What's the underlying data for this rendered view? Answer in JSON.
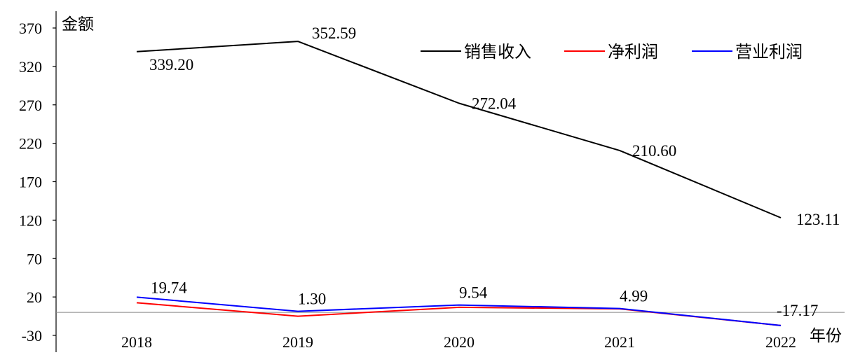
{
  "chart_data": {
    "type": "line",
    "xlabel": "年份",
    "ylabel": "金额",
    "categories": [
      "2018",
      "2019",
      "2020",
      "2021",
      "2022"
    ],
    "ylim": [
      -30,
      370
    ],
    "yticks": [
      -30,
      20,
      70,
      120,
      170,
      220,
      270,
      320,
      370
    ],
    "legend_position": "top-right",
    "series": [
      {
        "name": "销售收入",
        "color": "#000000",
        "values": [
          339.2,
          352.59,
          272.04,
          210.6,
          123.11
        ],
        "labels": [
          "339.20",
          "352.59",
          "272.04",
          "210.60",
          "123.11"
        ]
      },
      {
        "name": "净利润",
        "color": "#ff0000",
        "values": [
          12.5,
          -5.0,
          6.5,
          4.5,
          -17.17
        ],
        "labels": []
      },
      {
        "name": "营业利润",
        "color": "#0000ff",
        "values": [
          19.74,
          1.3,
          9.54,
          4.99,
          -17.17
        ],
        "labels": [
          "19.74",
          "1.30",
          "9.54",
          "4.99",
          "-17.17"
        ]
      }
    ]
  }
}
